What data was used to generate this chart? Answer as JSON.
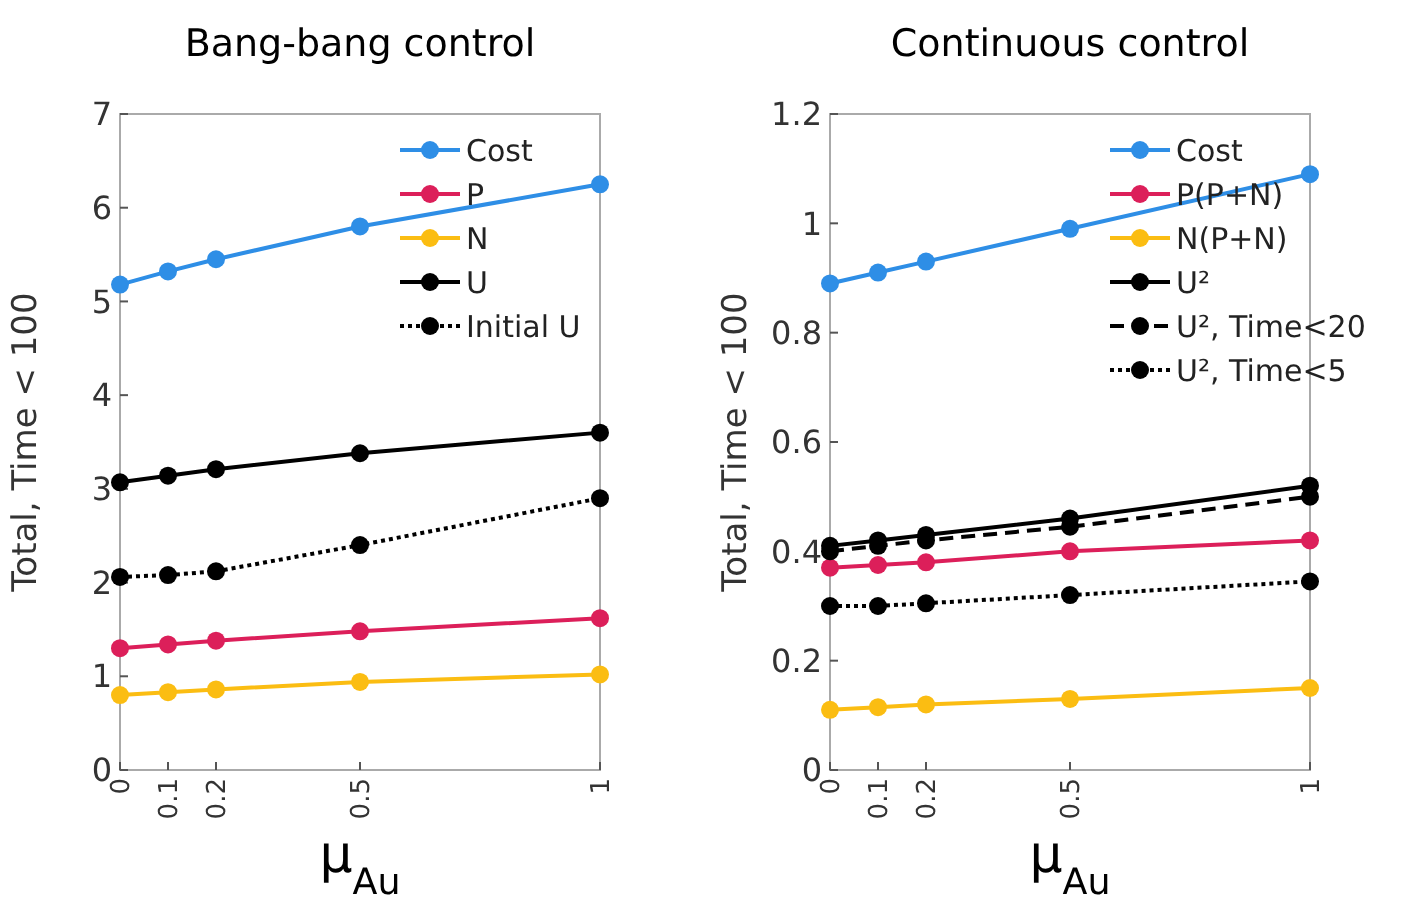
{
  "chart_data": [
    {
      "type": "line",
      "title": "Bang-bang control",
      "xlabel": "μ$_{Au}$",
      "ylabel": "Total, Time < 100",
      "x": [
        0,
        0.1,
        0.2,
        0.5,
        1
      ],
      "xlim": [
        0,
        1
      ],
      "xticks": [
        0,
        0.1,
        0.2,
        0.5,
        1
      ],
      "ylim": [
        0,
        7
      ],
      "yticks": [
        0,
        1,
        2,
        3,
        4,
        5,
        6,
        7
      ],
      "grid": false,
      "legend": "top right",
      "marker": "circle",
      "series": [
        {
          "name": "Cost",
          "color": "#2e8ee6",
          "values": [
            5.18,
            5.32,
            5.45,
            5.8,
            6.25
          ]
        },
        {
          "name": "P",
          "color": "#dc1f5a",
          "values": [
            1.3,
            1.34,
            1.38,
            1.48,
            1.62
          ]
        },
        {
          "name": "N",
          "color": "#fbbd12",
          "values": [
            0.8,
            0.83,
            0.86,
            0.94,
            1.02
          ]
        },
        {
          "name": "U",
          "color": "#000000",
          "values": [
            3.07,
            3.14,
            3.21,
            3.38,
            3.6
          ]
        },
        {
          "name": "Initial U",
          "color": "#000000",
          "line_style": "dotted",
          "values": [
            2.06,
            2.08,
            2.12,
            2.4,
            2.9
          ]
        }
      ]
    },
    {
      "type": "line",
      "title": "Continuous control",
      "xlabel": "μ$_{Au}$",
      "ylabel": "Total, Time < 100",
      "x": [
        0,
        0.1,
        0.2,
        0.5,
        1
      ],
      "xlim": [
        0,
        1
      ],
      "xticks": [
        0,
        0.1,
        0.2,
        0.5,
        1
      ],
      "ylim": [
        0,
        1.2
      ],
      "yticks": [
        0,
        0.2,
        0.4,
        0.6,
        0.8,
        1,
        1.2
      ],
      "grid": false,
      "legend": "top right",
      "marker": "circle",
      "series": [
        {
          "name": "Cost",
          "color": "#2e8ee6",
          "values": [
            0.89,
            0.91,
            0.93,
            0.99,
            1.09
          ]
        },
        {
          "name": "P(P+N)",
          "color": "#dc1f5a",
          "values": [
            0.37,
            0.375,
            0.38,
            0.4,
            0.42
          ]
        },
        {
          "name": "N(P+N)",
          "color": "#fbbd12",
          "values": [
            0.11,
            0.115,
            0.12,
            0.13,
            0.15
          ]
        },
        {
          "name": "U²",
          "color": "#000000",
          "values": [
            0.41,
            0.42,
            0.43,
            0.46,
            0.52
          ]
        },
        {
          "name": "U², Time<20",
          "color": "#000000",
          "line_style": "dashed",
          "values": [
            0.4,
            0.41,
            0.42,
            0.445,
            0.5
          ]
        },
        {
          "name": "U², Time<5",
          "color": "#000000",
          "line_style": "dotted",
          "values": [
            0.3,
            0.3,
            0.305,
            0.32,
            0.345
          ]
        }
      ]
    }
  ]
}
